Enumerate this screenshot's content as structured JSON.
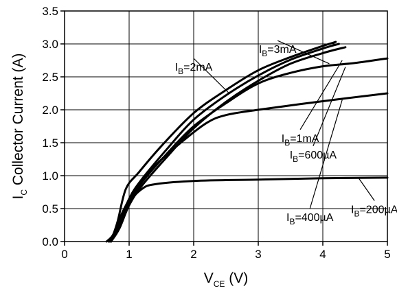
{
  "chart_data": {
    "type": "line",
    "title": "",
    "xlabel": {
      "main": "V",
      "sub": "CE",
      "unit": " (V)"
    },
    "ylabel": {
      "main": "I",
      "sub": "C",
      "unit": " Collector Current (A)"
    },
    "xlim": [
      0,
      5
    ],
    "ylim": [
      0,
      3.5
    ],
    "x_ticks": [
      0,
      1,
      2,
      3,
      4,
      5
    ],
    "y_ticks": [
      0.0,
      0.5,
      1.0,
      1.5,
      2.0,
      2.5,
      3.0,
      3.5
    ],
    "x_tick_labels": [
      "0",
      "1",
      "2",
      "3",
      "4",
      "5"
    ],
    "y_tick_labels": [
      "0.0",
      "0.5",
      "1.0",
      "1.5",
      "2.0",
      "2.5",
      "3.0",
      "3.5"
    ],
    "grid": true,
    "legend": "none",
    "series": [
      {
        "name": "IB=200µA",
        "points": [
          [
            0.65,
            0
          ],
          [
            0.75,
            0.1
          ],
          [
            0.85,
            0.35
          ],
          [
            1.0,
            0.6
          ],
          [
            1.2,
            0.8
          ],
          [
            1.4,
            0.87
          ],
          [
            2.0,
            0.92
          ],
          [
            3.0,
            0.94
          ],
          [
            4.0,
            0.96
          ],
          [
            5.0,
            0.97
          ]
        ]
      },
      {
        "name": "IB=400µA",
        "points": [
          [
            0.68,
            0
          ],
          [
            0.78,
            0.15
          ],
          [
            0.9,
            0.45
          ],
          [
            1.1,
            0.8
          ],
          [
            1.4,
            1.15
          ],
          [
            1.8,
            1.5
          ],
          [
            2.2,
            1.8
          ],
          [
            2.5,
            1.92
          ],
          [
            3.0,
            2.0
          ],
          [
            4.0,
            2.13
          ],
          [
            5.0,
            2.25
          ]
        ]
      },
      {
        "name": "IB=600µA",
        "points": [
          [
            0.7,
            0
          ],
          [
            0.82,
            0.15
          ],
          [
            0.95,
            0.5
          ],
          [
            1.2,
            0.9
          ],
          [
            1.6,
            1.35
          ],
          [
            2.0,
            1.75
          ],
          [
            2.5,
            2.1
          ],
          [
            3.0,
            2.4
          ],
          [
            3.5,
            2.56
          ],
          [
            4.0,
            2.66
          ],
          [
            4.5,
            2.71
          ],
          [
            5.0,
            2.78
          ]
        ]
      },
      {
        "name": "IB=1mA",
        "points": [
          [
            0.72,
            0
          ],
          [
            0.85,
            0.2
          ],
          [
            1.0,
            0.55
          ],
          [
            1.2,
            0.85
          ],
          [
            1.6,
            1.3
          ],
          [
            2.0,
            1.72
          ],
          [
            2.5,
            2.12
          ],
          [
            3.0,
            2.44
          ],
          [
            3.5,
            2.7
          ],
          [
            4.0,
            2.86
          ],
          [
            4.35,
            2.95
          ]
        ]
      },
      {
        "name": "IB=2mA",
        "points": [
          [
            0.72,
            0
          ],
          [
            0.85,
            0.25
          ],
          [
            1.0,
            0.65
          ],
          [
            1.2,
            0.95
          ],
          [
            1.6,
            1.42
          ],
          [
            2.0,
            1.85
          ],
          [
            2.5,
            2.22
          ],
          [
            3.0,
            2.52
          ],
          [
            3.5,
            2.76
          ],
          [
            4.0,
            2.93
          ],
          [
            4.25,
            3.0
          ]
        ]
      },
      {
        "name": "IB=3mA",
        "points": [
          [
            0.72,
            0
          ],
          [
            0.82,
            0.3
          ],
          [
            0.95,
            0.8
          ],
          [
            1.15,
            1.05
          ],
          [
            1.5,
            1.45
          ],
          [
            2.0,
            1.95
          ],
          [
            2.5,
            2.3
          ],
          [
            3.0,
            2.6
          ],
          [
            3.5,
            2.8
          ],
          [
            4.0,
            2.97
          ],
          [
            4.2,
            3.03
          ]
        ]
      }
    ],
    "annotations": [
      {
        "id": "ib-3ma",
        "main": "I",
        "sub": "B",
        "rest": "=3mA",
        "anchor": [
          3.3,
          3.05
        ],
        "target": [
          4.1,
          2.7
        ]
      },
      {
        "id": "ib-2ma",
        "main": "I",
        "sub": "B",
        "rest": "=2mA",
        "anchor": [
          2.0,
          2.78
        ],
        "target": [
          2.55,
          2.25
        ]
      },
      {
        "id": "ib-1ma",
        "main": "I",
        "sub": "B",
        "rest": "=1mA",
        "anchor": [
          3.65,
          1.7
        ],
        "target": [
          4.3,
          2.75
        ]
      },
      {
        "id": "ib-600ua",
        "main": "I",
        "sub": "B",
        "rest": "=600µA",
        "anchor": [
          3.85,
          1.45
        ],
        "target": [
          4.35,
          2.65
        ]
      },
      {
        "id": "ib-400ua",
        "main": "I",
        "sub": "B",
        "rest": "=400µA",
        "anchor": [
          3.8,
          0.5
        ],
        "target": [
          4.3,
          2.15
        ]
      },
      {
        "id": "ib-200ua",
        "main": "I",
        "sub": "B",
        "rest": "=200µA",
        "anchor": [
          4.8,
          0.62
        ],
        "target": [
          4.55,
          0.97
        ]
      }
    ]
  }
}
